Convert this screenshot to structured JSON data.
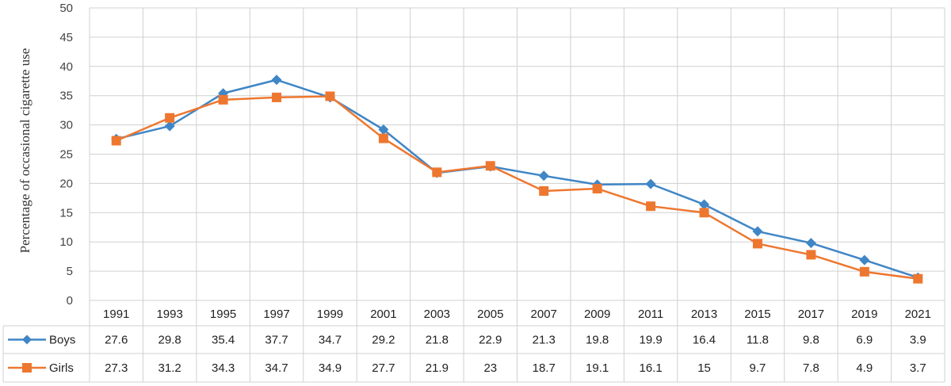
{
  "chart_data": {
    "type": "line",
    "title": "",
    "xlabel": "",
    "ylabel": "Percentage of occasional cigarette use",
    "ylim": [
      0,
      50
    ],
    "yticks": [
      0,
      5,
      10,
      15,
      20,
      25,
      30,
      35,
      40,
      45,
      50
    ],
    "grid": true,
    "legend": "data-table-left",
    "categories": [
      "1991",
      "1993",
      "1995",
      "1997",
      "1999",
      "2001",
      "2003",
      "2005",
      "2007",
      "2009",
      "2011",
      "2013",
      "2015",
      "2017",
      "2019",
      "2021"
    ],
    "series": [
      {
        "name": "Boys",
        "color": "#3f86c6",
        "marker": "diamond",
        "values": [
          27.6,
          29.8,
          35.4,
          37.7,
          34.7,
          29.2,
          21.8,
          22.9,
          21.3,
          19.8,
          19.9,
          16.4,
          11.8,
          9.8,
          6.9,
          3.9
        ],
        "labels": [
          "27.6",
          "29.8",
          "35.4",
          "37.7",
          "34.7",
          "29.2",
          "21.8",
          "22.9",
          "21.3",
          "19.8",
          "19.9",
          "16.4",
          "11.8",
          "9.8",
          "6.9",
          "3.9"
        ]
      },
      {
        "name": "Girls",
        "color": "#ee7730",
        "marker": "square",
        "values": [
          27.3,
          31.2,
          34.3,
          34.7,
          34.9,
          27.7,
          21.9,
          23,
          18.7,
          19.1,
          16.1,
          15,
          9.7,
          7.8,
          4.9,
          3.7
        ],
        "labels": [
          "27.3",
          "31.2",
          "34.3",
          "34.7",
          "34.9",
          "27.7",
          "21.9",
          "23",
          "18.7",
          "19.1",
          "16.1",
          "15",
          "9.7",
          "7.8",
          "4.9",
          "3.7"
        ]
      }
    ]
  }
}
